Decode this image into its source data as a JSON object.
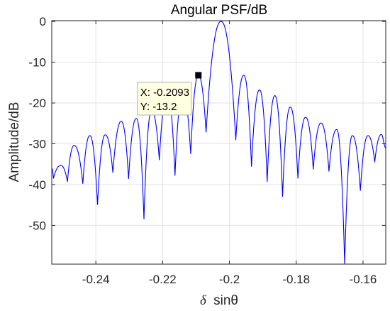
{
  "chart_data": {
    "type": "line",
    "title": "Angular PSF/dB",
    "xlabel_symbol": "δ",
    "xlabel_text": "sinθ",
    "ylabel": "Amplitude/dB",
    "xlim": [
      -0.2532,
      -0.1532
    ],
    "ylim": [
      -59.5,
      0.2
    ],
    "xticks": [
      -0.24,
      -0.22,
      -0.2,
      -0.18,
      -0.16
    ],
    "xtick_labels": [
      "-0.24",
      "-0.22",
      "-0.2",
      "-0.18",
      "-0.16"
    ],
    "yticks": [
      0,
      -10,
      -20,
      -30,
      -40,
      -50
    ],
    "ytick_labels": [
      "0",
      "-10",
      "-20",
      "-30",
      "-40",
      "-50"
    ],
    "grid": true,
    "line_color": "#0000ff",
    "series": [
      {
        "peaks": [
          [
            -0.2532,
            -36.0
          ],
          [
            -0.2505,
            -35.3
          ],
          [
            -0.2465,
            -30.4
          ],
          [
            -0.2418,
            -28.0
          ],
          [
            -0.2372,
            -27.8
          ],
          [
            -0.2324,
            -24.5
          ],
          [
            -0.2279,
            -23.8
          ],
          [
            -0.2233,
            -21.8
          ],
          [
            -0.2186,
            -17.7
          ],
          [
            -0.214,
            -17.5
          ],
          [
            -0.2093,
            -13.2
          ],
          [
            -0.2025,
            0.0
          ],
          [
            -0.1957,
            -13.2
          ],
          [
            -0.191,
            -16.8
          ],
          [
            -0.1864,
            -18.2
          ],
          [
            -0.1818,
            -21.0
          ],
          [
            -0.1772,
            -23.5
          ],
          [
            -0.1726,
            -24.9
          ],
          [
            -0.1679,
            -26.5
          ],
          [
            -0.1632,
            -28.0
          ],
          [
            -0.1585,
            -28.0
          ],
          [
            -0.1545,
            -27.7
          ],
          [
            -0.1532,
            -31.0
          ]
        ],
        "nulls": [
          [
            -0.2527,
            -38.5
          ],
          [
            -0.2485,
            -39.3
          ],
          [
            -0.2439,
            -39.8
          ],
          [
            -0.2395,
            -45.0
          ],
          [
            -0.2349,
            -37.1
          ],
          [
            -0.2302,
            -38.6
          ],
          [
            -0.2256,
            -48.5
          ],
          [
            -0.221,
            -34.0
          ],
          [
            -0.2163,
            -37.8
          ],
          [
            -0.2116,
            -32.5
          ],
          [
            -0.207,
            -27.2
          ],
          [
            -0.1981,
            -29.1
          ],
          [
            -0.1934,
            -35.6
          ],
          [
            -0.1887,
            -39.3
          ],
          [
            -0.1841,
            -43.0
          ],
          [
            -0.1795,
            -38.5
          ],
          [
            -0.1749,
            -36.3
          ],
          [
            -0.1702,
            -36.8
          ],
          [
            -0.1655,
            -59.5
          ],
          [
            -0.1608,
            -41.5
          ],
          [
            -0.1565,
            -34.5
          ]
        ]
      }
    ],
    "datatip": {
      "x": -0.2093,
      "y": -13.2,
      "x_text": "X: -0.2093",
      "y_text": "Y: -13.2"
    }
  }
}
